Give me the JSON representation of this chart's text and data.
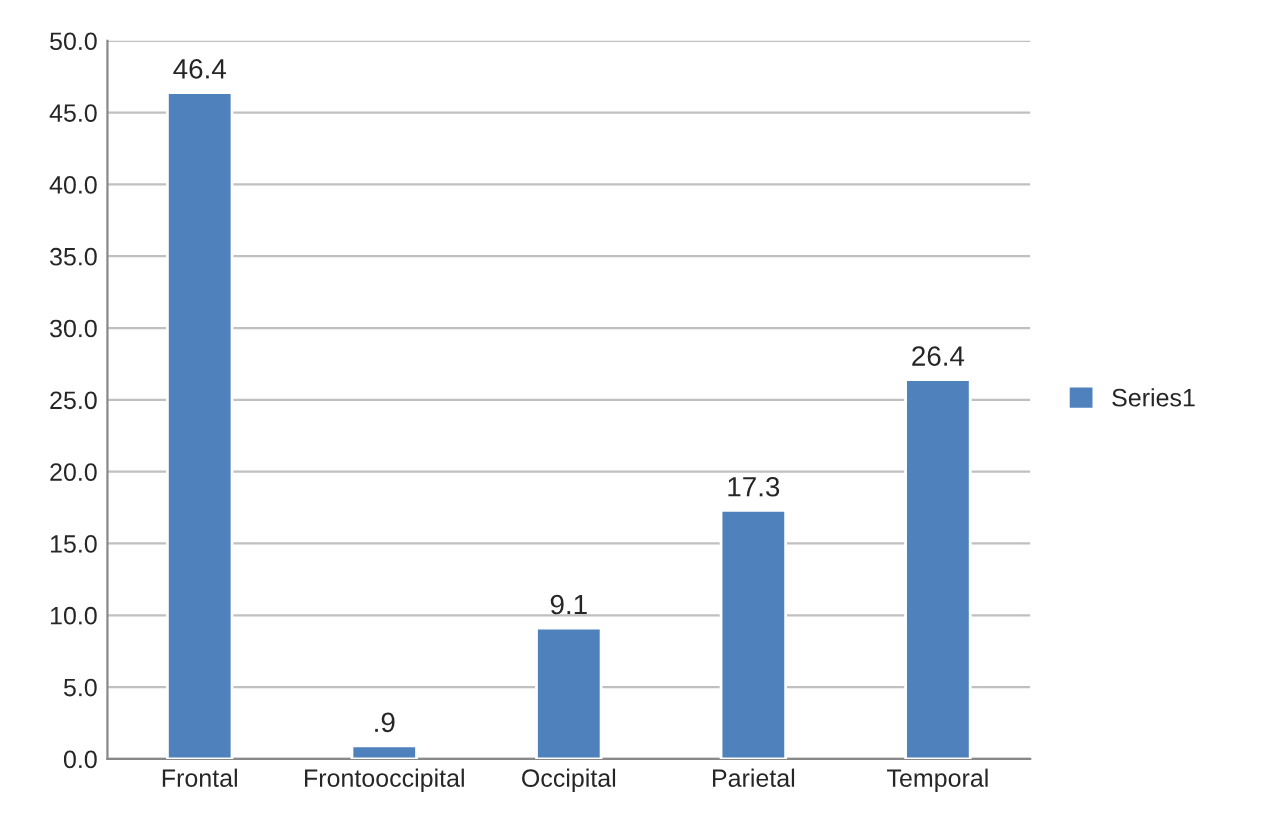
{
  "chart_data": {
    "type": "bar",
    "categories": [
      "Frontal",
      "Frontooccipital",
      "Occipital",
      "Parietal",
      "Temporal"
    ],
    "series": [
      {
        "name": "Series1",
        "color": "#4f81bd",
        "values": [
          46.4,
          0.9,
          9.1,
          17.3,
          26.4
        ],
        "value_labels": [
          "46.4",
          ".9",
          "9.1",
          "17.3",
          "26.4"
        ]
      }
    ],
    "ylim": [
      0,
      50
    ],
    "yticks": [
      {
        "value": 0,
        "label": "0.0"
      },
      {
        "value": 5,
        "label": "5.0"
      },
      {
        "value": 10,
        "label": "10.0"
      },
      {
        "value": 15,
        "label": "15.0"
      },
      {
        "value": 20,
        "label": "20.0"
      },
      {
        "value": 25,
        "label": "25.0"
      },
      {
        "value": 30,
        "label": "30.0"
      },
      {
        "value": 35,
        "label": "35.0"
      },
      {
        "value": 40,
        "label": "40.0"
      },
      {
        "value": 45,
        "label": "45.0"
      },
      {
        "value": 50,
        "label": "50.0"
      }
    ],
    "grid": "y",
    "legend": "right"
  }
}
